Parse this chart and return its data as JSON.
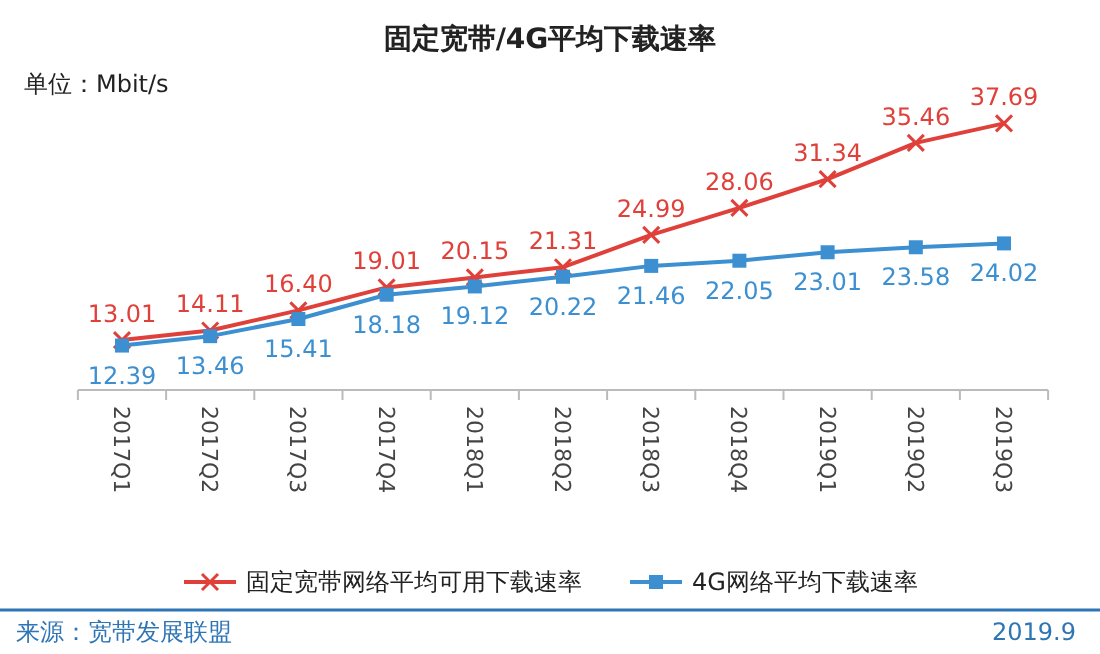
{
  "chart_data": {
    "type": "line",
    "title": "固定宽带/4G平均下载速率",
    "subtitle": "单位：Mbit/s",
    "categories": [
      "2017Q1",
      "2017Q2",
      "2017Q3",
      "2017Q4",
      "2018Q1",
      "2018Q2",
      "2018Q3",
      "2018Q4",
      "2019Q1",
      "2019Q2",
      "2019Q3"
    ],
    "series": [
      {
        "name": "固定宽带网络平均可用下载速率",
        "color": "#e0403a",
        "marker": "cross",
        "values": [
          13.01,
          14.11,
          16.4,
          19.01,
          20.15,
          21.31,
          24.99,
          28.06,
          31.34,
          35.46,
          37.69
        ],
        "value_labels": [
          "13.01",
          "14.11",
          "16.40",
          "19.01",
          "20.15",
          "21.31",
          "24.99",
          "28.06",
          "31.34",
          "35.46",
          "37.69"
        ]
      },
      {
        "name": "4G网络平均下载速率",
        "color": "#3c8fd0",
        "marker": "square",
        "values": [
          12.39,
          13.46,
          15.41,
          18.18,
          19.12,
          20.22,
          21.46,
          22.05,
          23.01,
          23.58,
          24.02
        ],
        "value_labels": [
          "12.39",
          "13.46",
          "15.41",
          "18.18",
          "19.12",
          "20.22",
          "21.46",
          "22.05",
          "23.01",
          "23.58",
          "24.02"
        ]
      }
    ],
    "legend": "bottom",
    "grid": false,
    "annotations": [
      "来源：宽带发展联盟",
      "2019.9"
    ]
  }
}
